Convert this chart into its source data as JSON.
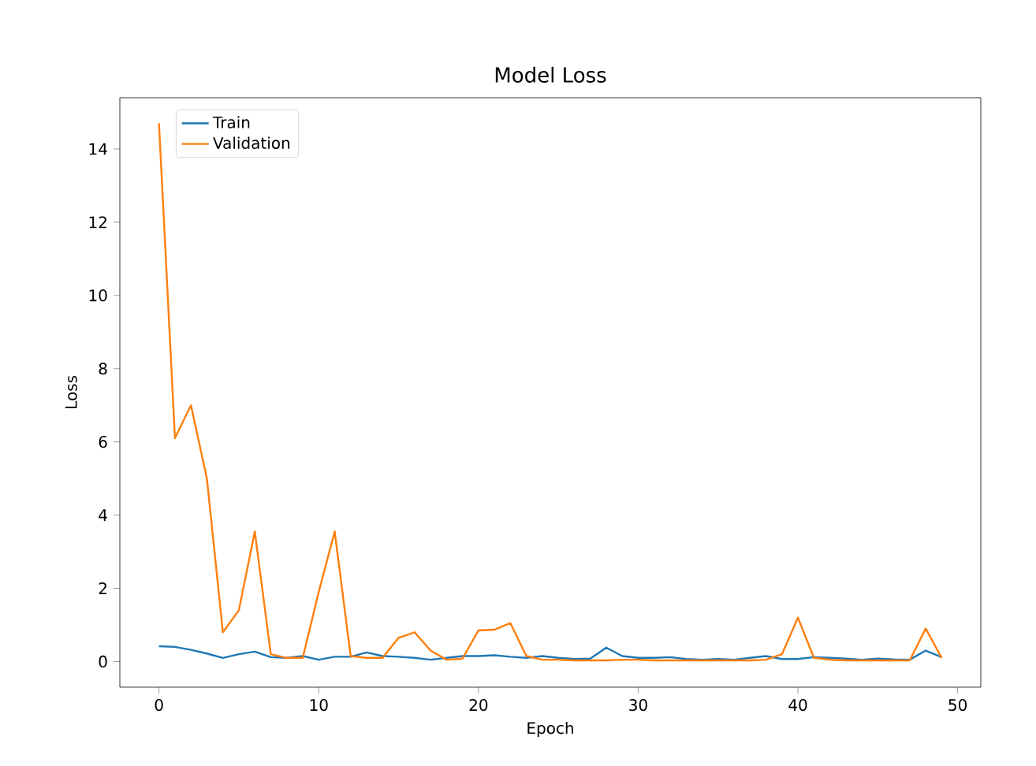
{
  "chart_data": {
    "type": "line",
    "title": "Model Loss",
    "xlabel": "Epoch",
    "ylabel": "Loss",
    "x": [
      0,
      1,
      2,
      3,
      4,
      5,
      6,
      7,
      8,
      9,
      10,
      11,
      12,
      13,
      14,
      15,
      16,
      17,
      18,
      19,
      20,
      21,
      22,
      23,
      24,
      25,
      26,
      27,
      28,
      29,
      30,
      31,
      32,
      33,
      34,
      35,
      36,
      37,
      38,
      39,
      40,
      41,
      42,
      43,
      44,
      45,
      46,
      47,
      48,
      49
    ],
    "series": [
      {
        "name": "Train",
        "color": "#1f77b4",
        "values": [
          0.42,
          0.4,
          0.32,
          0.22,
          0.1,
          0.2,
          0.27,
          0.12,
          0.1,
          0.15,
          0.05,
          0.13,
          0.13,
          0.25,
          0.15,
          0.13,
          0.1,
          0.05,
          0.1,
          0.15,
          0.15,
          0.17,
          0.13,
          0.1,
          0.15,
          0.1,
          0.07,
          0.08,
          0.38,
          0.15,
          0.1,
          0.1,
          0.12,
          0.07,
          0.05,
          0.07,
          0.05,
          0.1,
          0.15,
          0.07,
          0.07,
          0.12,
          0.1,
          0.08,
          0.05,
          0.08,
          0.06,
          0.05,
          0.3,
          0.12
        ]
      },
      {
        "name": "Validation",
        "color": "#ff7f0e",
        "values": [
          14.7,
          6.1,
          7.0,
          5.0,
          0.8,
          1.4,
          3.55,
          0.2,
          0.1,
          0.1,
          1.9,
          3.55,
          0.15,
          0.1,
          0.1,
          0.65,
          0.8,
          0.3,
          0.05,
          0.08,
          0.85,
          0.87,
          1.05,
          0.15,
          0.05,
          0.05,
          0.03,
          0.03,
          0.03,
          0.05,
          0.05,
          0.03,
          0.03,
          0.03,
          0.03,
          0.03,
          0.03,
          0.03,
          0.05,
          0.2,
          1.2,
          0.1,
          0.05,
          0.03,
          0.03,
          0.03,
          0.03,
          0.03,
          0.9,
          0.1
        ]
      }
    ],
    "xlim": [
      -2.45,
      51.45
    ],
    "ylim": [
      -0.7,
      15.4
    ],
    "xticks": [
      0,
      10,
      20,
      30,
      40,
      50
    ],
    "yticks": [
      0,
      2,
      4,
      6,
      8,
      10,
      12,
      14
    ],
    "legend": "top left",
    "grid": false,
    "marker": "none",
    "line_style": "solid"
  }
}
